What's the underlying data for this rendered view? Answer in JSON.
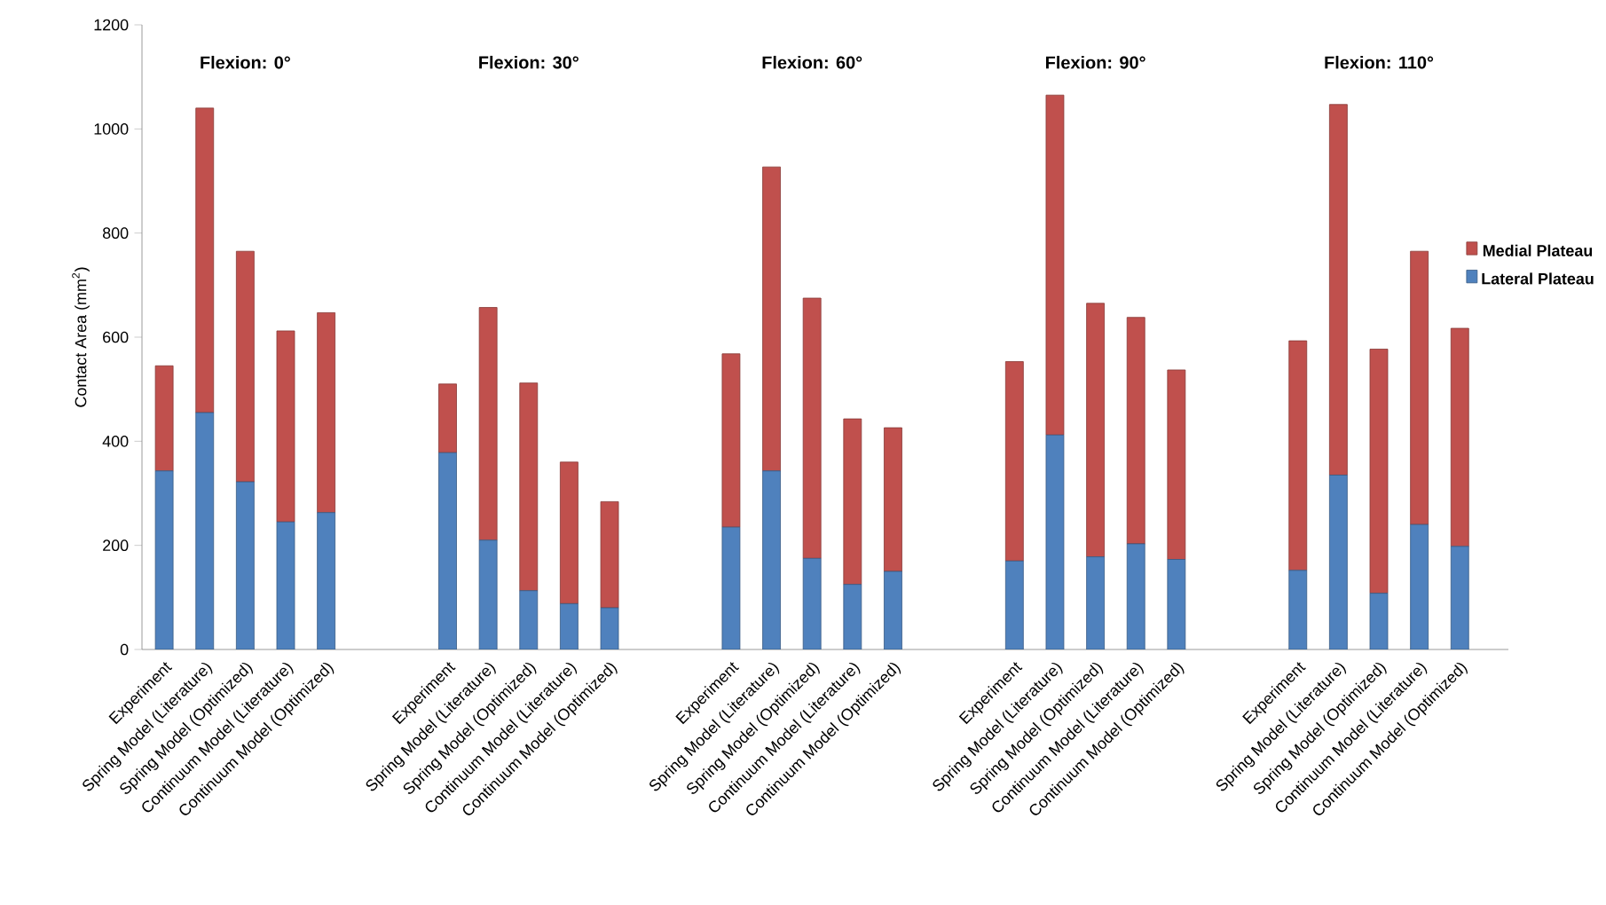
{
  "chart_data": {
    "type": "bar",
    "stacked": true,
    "ylabel": "Contact Area (mm$^{2}$)",
    "ylim": [
      0,
      1200
    ],
    "yticks": [
      0,
      200,
      400,
      600,
      800,
      1000,
      1200
    ],
    "legend": "right",
    "categories": [
      "Experiment",
      "Spring Model (Literature)",
      "Spring Model (Optimized)",
      "Continuum Model (Literature)",
      "Continuum Model (Optimized)",
      null,
      null,
      "Experiment",
      "Spring Model (Literature)",
      "Spring Model (Optimized)",
      "Continuum Model (Literature)",
      "Continuum Model (Optimized)",
      null,
      null,
      "Experiment",
      "Spring Model (Literature)",
      "Spring Model (Optimized)",
      "Continuum Model (Literature)",
      "Continuum Model (Optimized)",
      null,
      null,
      "Experiment",
      "Spring Model (Literature)",
      "Spring Model (Optimized)",
      "Continuum Model (Literature)",
      "Continuum Model (Optimized)",
      null,
      null,
      "Experiment",
      "Spring Model (Literature)",
      "Spring Model (Optimized)",
      "Continuum Model (Literature)",
      "Continuum Model (Optimized)"
    ],
    "series": [
      {
        "name": "Lateral Plateau",
        "color": "#4f81bd",
        "values": [
          343,
          455,
          322,
          245,
          263,
          null,
          null,
          378,
          210,
          113,
          88,
          80,
          null,
          null,
          235,
          343,
          175,
          125,
          150,
          null,
          null,
          170,
          412,
          178,
          203,
          173,
          null,
          null,
          152,
          335,
          108,
          240,
          198
        ]
      },
      {
        "name": "Medial Plateau",
        "color": "#c0504d",
        "values": [
          202,
          585,
          443,
          367,
          384,
          null,
          null,
          132,
          447,
          399,
          272,
          204,
          null,
          null,
          333,
          584,
          500,
          318,
          276,
          null,
          null,
          383,
          653,
          487,
          435,
          364,
          null,
          null,
          441,
          712,
          469,
          525,
          419
        ]
      }
    ],
    "annotations": [
      "Flexion: 0°",
      "Flexion: 30°",
      "Flexion: 60°",
      "Flexion: 90°",
      "Flexion: 110°"
    ]
  }
}
